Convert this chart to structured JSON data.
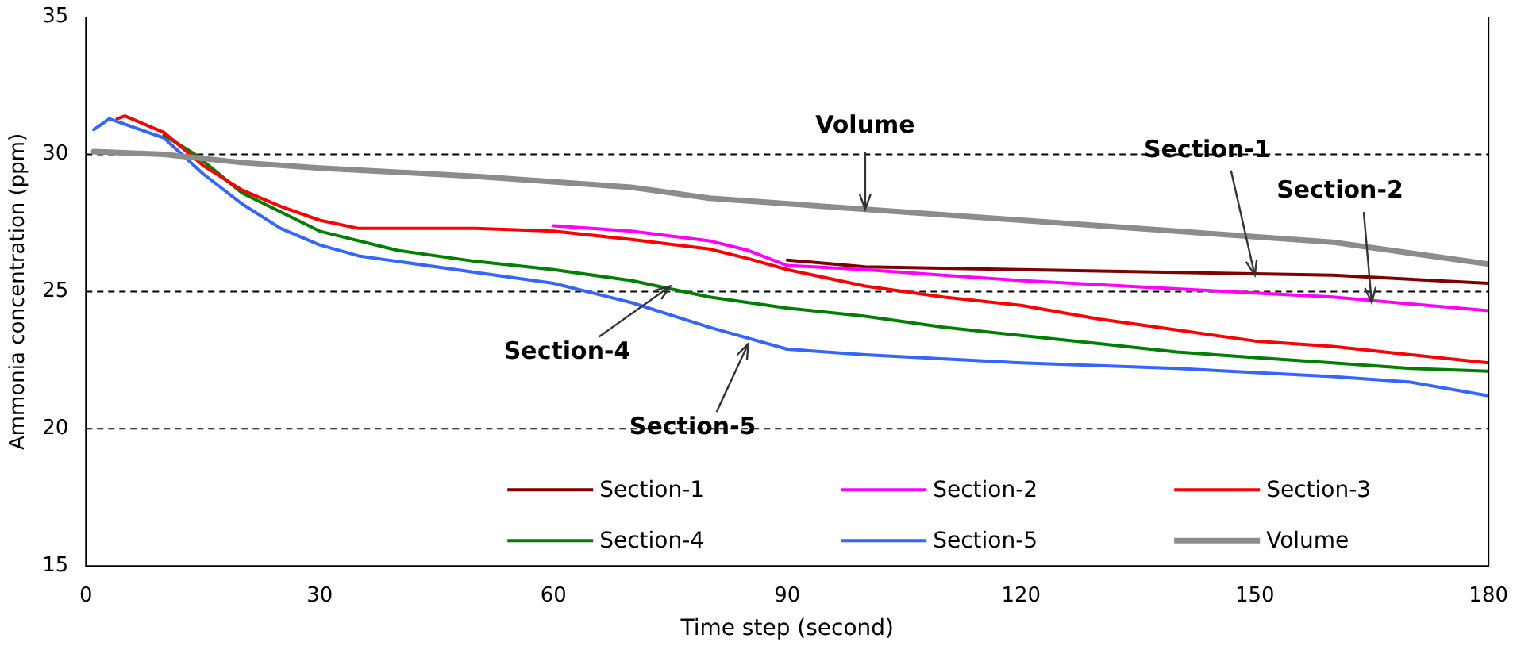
{
  "chart_data": {
    "type": "line",
    "xlabel": "Time step (second)",
    "ylabel": "Ammonia concentration (ppm)",
    "xlim": [
      0,
      180
    ],
    "xticks": [
      0,
      30,
      60,
      90,
      120,
      150,
      180
    ],
    "ylim": [
      15,
      35
    ],
    "yticks": [
      15,
      20,
      25,
      30,
      35
    ],
    "grid": "y",
    "legend": "bottom right",
    "marker": "none",
    "line_style": "solid",
    "series": [
      {
        "name": "Section-1",
        "color": "#800000",
        "x": [
          90,
          100,
          120,
          140,
          160,
          180
        ],
        "values": [
          26.15,
          25.9,
          25.8,
          25.7,
          25.6,
          25.3
        ]
      },
      {
        "name": "Section-2",
        "color": "#ff00ff",
        "x": [
          60,
          70,
          80,
          85,
          90,
          100,
          110,
          120,
          140,
          160,
          180
        ],
        "values": [
          27.4,
          27.2,
          26.85,
          26.5,
          25.95,
          25.8,
          25.6,
          25.4,
          25.1,
          24.8,
          24.3
        ]
      },
      {
        "name": "Section-3",
        "color": "#ff0000",
        "x": [
          4,
          5,
          10,
          15,
          20,
          25,
          30,
          35,
          40,
          50,
          60,
          70,
          80,
          85,
          90,
          100,
          110,
          120,
          130,
          140,
          150,
          160,
          170,
          180
        ],
        "values": [
          31.3,
          31.4,
          30.8,
          29.6,
          28.7,
          28.1,
          27.6,
          27.3,
          27.3,
          27.3,
          27.2,
          26.9,
          26.55,
          26.2,
          25.8,
          25.2,
          24.8,
          24.5,
          24.0,
          23.6,
          23.2,
          23.0,
          22.7,
          22.4
        ]
      },
      {
        "name": "Section-4",
        "color": "#008000",
        "x": [
          10,
          14,
          20,
          30,
          40,
          50,
          60,
          70,
          75,
          80,
          90,
          100,
          110,
          120,
          130,
          140,
          150,
          160,
          170,
          180
        ],
        "values": [
          30.7,
          30.0,
          28.6,
          27.2,
          26.5,
          26.1,
          25.8,
          25.4,
          25.1,
          24.8,
          24.4,
          24.1,
          23.7,
          23.4,
          23.1,
          22.8,
          22.6,
          22.4,
          22.2,
          22.1
        ]
      },
      {
        "name": "Section-5",
        "color": "#3366ff",
        "x": [
          1,
          3,
          10,
          15,
          20,
          25,
          30,
          35,
          40,
          50,
          60,
          70,
          80,
          90,
          100,
          120,
          140,
          160,
          170,
          180
        ],
        "values": [
          30.9,
          31.3,
          30.6,
          29.3,
          28.2,
          27.3,
          26.7,
          26.3,
          26.1,
          25.7,
          25.3,
          24.6,
          23.7,
          22.9,
          22.7,
          22.4,
          22.2,
          21.9,
          21.7,
          21.2
        ]
      },
      {
        "name": "Volume",
        "color": "#8c8c8c",
        "x": [
          1,
          10,
          20,
          30,
          50,
          70,
          80,
          100,
          120,
          140,
          160,
          180
        ],
        "values": [
          30.1,
          30.0,
          29.7,
          29.5,
          29.2,
          28.8,
          28.4,
          28.0,
          27.6,
          27.2,
          26.8,
          26.0
        ]
      }
    ],
    "annotations": [
      {
        "text": "Volume",
        "x": 100,
        "y": 28.0
      },
      {
        "text": "Section-1",
        "x": 150,
        "y": 25.6
      },
      {
        "text": "Section-2",
        "x": 165,
        "y": 24.6
      },
      {
        "text": "Section-4",
        "x": 75,
        "y": 25.2
      },
      {
        "text": "Section-5",
        "x": 85,
        "y": 23.1
      }
    ]
  }
}
